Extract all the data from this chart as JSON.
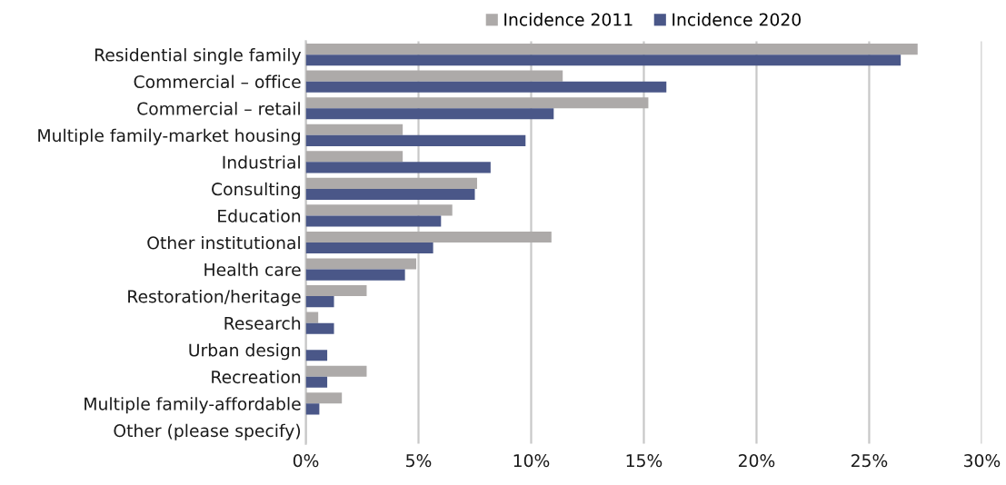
{
  "chart_data": {
    "type": "bar",
    "orientation": "horizontal",
    "categories": [
      "Residential single family",
      "Commercial – office",
      "Commercial – retail",
      "Multiple family-market housing",
      "Industrial",
      "Consulting",
      "Education",
      "Other institutional",
      "Health care",
      "Restoration/heritage",
      "Research",
      "Urban design",
      "Recreation",
      "Multiple family-affordable",
      "Other (please specify)"
    ],
    "series": [
      {
        "name": "Incidence 2011",
        "color": "#adaaa9",
        "values": [
          27.15,
          11.4,
          15.2,
          4.3,
          4.3,
          7.6,
          6.5,
          10.9,
          4.9,
          2.7,
          0.55,
          0,
          2.7,
          1.6,
          0
        ]
      },
      {
        "name": "Incidence 2020",
        "color": "#4a5788",
        "values": [
          26.4,
          16.0,
          11.0,
          9.75,
          8.2,
          7.5,
          6.0,
          5.65,
          4.4,
          1.25,
          1.25,
          0.95,
          0.95,
          0.6,
          0
        ]
      }
    ],
    "xlim": [
      0,
      30
    ],
    "xticks": [
      {
        "value": 0,
        "label": "0%"
      },
      {
        "value": 5,
        "label": "5%"
      },
      {
        "value": 10,
        "label": "10%"
      },
      {
        "value": 15,
        "label": "15%"
      },
      {
        "value": 20,
        "label": "20%"
      },
      {
        "value": 25,
        "label": "25%"
      },
      {
        "value": 30,
        "label": "30%"
      }
    ],
    "grid": "x",
    "legend": "top"
  }
}
